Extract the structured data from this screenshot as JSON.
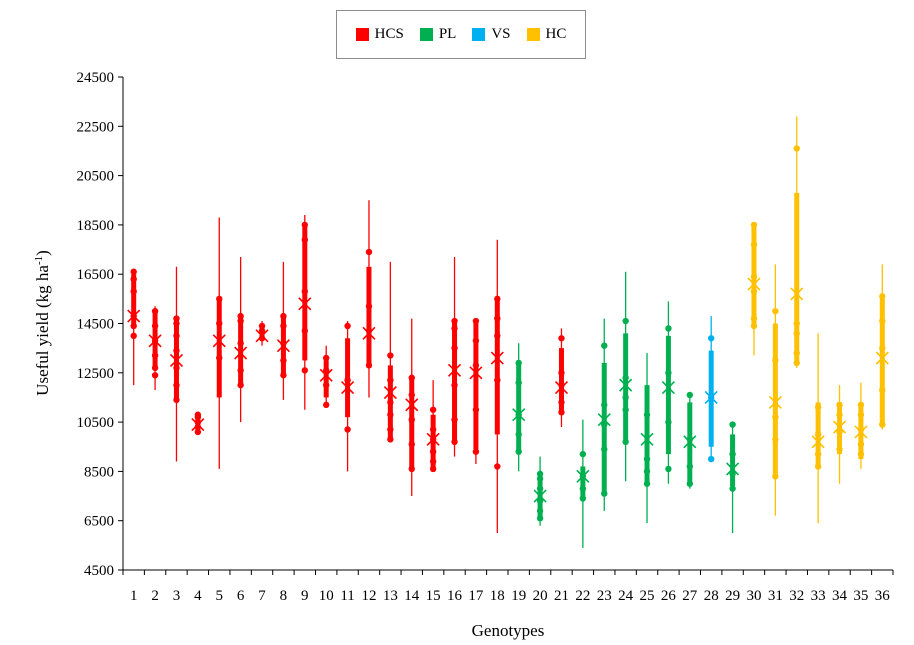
{
  "chart_data": {
    "type": "boxplot",
    "xlabel": "Genotypes",
    "ylabel": "Useful yield (kg ha",
    "ylabel_sup": "-1",
    "ylabel_close": ")",
    "ylim": [
      4500,
      24500
    ],
    "yticks": [
      4500,
      6500,
      8500,
      10500,
      12500,
      14500,
      16500,
      18500,
      20500,
      22500,
      24500
    ],
    "legend_position": "top-center",
    "groups": [
      {
        "name": "HCS",
        "color": "#ff0000"
      },
      {
        "name": "PL",
        "color": "#00b050"
      },
      {
        "name": "VS",
        "color": "#00b0f0"
      },
      {
        "name": "HC",
        "color": "#ffc000"
      }
    ],
    "genotypes": [
      {
        "label": "1",
        "group": "HCS",
        "min": 12000,
        "q1": 14300,
        "q3": 16500,
        "max": 16600,
        "mean": 14800,
        "points": [
          14000,
          14400,
          14800,
          15800,
          16300,
          16600
        ]
      },
      {
        "label": "2",
        "group": "HCS",
        "min": 11800,
        "q1": 12700,
        "q3": 15000,
        "max": 15200,
        "mean": 13800,
        "points": [
          12400,
          12700,
          13200,
          13800,
          14400,
          15000
        ]
      },
      {
        "label": "3",
        "group": "HCS",
        "min": 8900,
        "q1": 11400,
        "q3": 14700,
        "max": 16800,
        "mean": 13000,
        "points": [
          11400,
          12000,
          12700,
          13400,
          14000,
          14500,
          14700
        ]
      },
      {
        "label": "4",
        "group": "HCS",
        "min": 10000,
        "q1": 10100,
        "q3": 10800,
        "max": 10900,
        "mean": 10400,
        "points": [
          10100,
          10300,
          10500,
          10700,
          10800
        ]
      },
      {
        "label": "5",
        "group": "HCS",
        "min": 8600,
        "q1": 11500,
        "q3": 15500,
        "max": 18800,
        "mean": 13800,
        "points": [
          13100,
          14500,
          15500
        ]
      },
      {
        "label": "6",
        "group": "HCS",
        "min": 10500,
        "q1": 12000,
        "q3": 14800,
        "max": 17200,
        "mean": 13300,
        "points": [
          12000,
          12600,
          13700,
          14600,
          14800
        ]
      },
      {
        "label": "7",
        "group": "HCS",
        "min": 13600,
        "q1": 13900,
        "q3": 14400,
        "max": 14600,
        "mean": 14000,
        "points": [
          13900,
          14200,
          14400
        ]
      },
      {
        "label": "8",
        "group": "HCS",
        "min": 11400,
        "q1": 12400,
        "q3": 14800,
        "max": 17000,
        "mean": 13600,
        "points": [
          12400,
          13000,
          13700,
          14400,
          14800
        ]
      },
      {
        "label": "9",
        "group": "HCS",
        "min": 11000,
        "q1": 13000,
        "q3": 18500,
        "max": 18900,
        "mean": 15300,
        "points": [
          12600,
          14200,
          15800,
          17900,
          18500
        ]
      },
      {
        "label": "10",
        "group": "HCS",
        "min": 11100,
        "q1": 11500,
        "q3": 13000,
        "max": 13600,
        "mean": 12400,
        "points": [
          11200,
          12000,
          12600,
          13100
        ]
      },
      {
        "label": "11",
        "group": "HCS",
        "min": 8500,
        "q1": 10700,
        "q3": 13900,
        "max": 14600,
        "mean": 11900,
        "points": [
          10200,
          12200,
          14400
        ]
      },
      {
        "label": "12",
        "group": "HCS",
        "min": 11500,
        "q1": 12800,
        "q3": 16800,
        "max": 19500,
        "mean": 14100,
        "points": [
          12800,
          14200,
          15200,
          17400
        ]
      },
      {
        "label": "13",
        "group": "HCS",
        "min": 9700,
        "q1": 9800,
        "q3": 12800,
        "max": 17000,
        "mean": 11700,
        "points": [
          9800,
          10200,
          10800,
          11300,
          12200,
          13200
        ]
      },
      {
        "label": "14",
        "group": "HCS",
        "min": 7500,
        "q1": 8600,
        "q3": 12300,
        "max": 14700,
        "mean": 11200,
        "points": [
          8600,
          9600,
          10600,
          11600,
          12300
        ]
      },
      {
        "label": "15",
        "group": "HCS",
        "min": 8500,
        "q1": 8600,
        "q3": 10800,
        "max": 12200,
        "mean": 9800,
        "points": [
          8600,
          8900,
          9300,
          9800,
          10200,
          11000
        ]
      },
      {
        "label": "16",
        "group": "HCS",
        "min": 9100,
        "q1": 9700,
        "q3": 14600,
        "max": 17200,
        "mean": 12600,
        "points": [
          9700,
          10600,
          12000,
          13500,
          14300,
          14600
        ]
      },
      {
        "label": "17",
        "group": "HCS",
        "min": 8800,
        "q1": 9400,
        "q3": 14600,
        "max": 14700,
        "mean": 12500,
        "points": [
          9300,
          11000,
          12800,
          13800,
          14600
        ]
      },
      {
        "label": "18",
        "group": "HCS",
        "min": 6000,
        "q1": 10000,
        "q3": 15500,
        "max": 17900,
        "mean": 13100,
        "points": [
          8700,
          12200,
          14000,
          14700,
          15500
        ]
      },
      {
        "label": "19",
        "group": "PL",
        "min": 8500,
        "q1": 9300,
        "q3": 12900,
        "max": 13700,
        "mean": 10800,
        "points": [
          9300,
          10000,
          10800,
          12100,
          12900
        ]
      },
      {
        "label": "20",
        "group": "PL",
        "min": 6300,
        "q1": 6500,
        "q3": 8400,
        "max": 9100,
        "mean": 7500,
        "points": [
          6600,
          6900,
          7300,
          7800,
          8200,
          8400
        ]
      },
      {
        "label": "21",
        "group": "HCS",
        "min": 10300,
        "q1": 10800,
        "q3": 13500,
        "max": 14300,
        "mean": 11900,
        "points": [
          10900,
          11300,
          12000,
          12500,
          13900
        ]
      },
      {
        "label": "22",
        "group": "PL",
        "min": 5400,
        "q1": 7400,
        "q3": 8700,
        "max": 10600,
        "mean": 8300,
        "points": [
          7400,
          7800,
          8300,
          9200
        ]
      },
      {
        "label": "23",
        "group": "PL",
        "min": 6900,
        "q1": 7600,
        "q3": 12900,
        "max": 14700,
        "mean": 10600,
        "points": [
          7600,
          9400,
          10400,
          11200,
          13600
        ]
      },
      {
        "label": "24",
        "group": "PL",
        "min": 8100,
        "q1": 9700,
        "q3": 14100,
        "max": 16600,
        "mean": 12000,
        "points": [
          9700,
          11000,
          11500,
          12300,
          14600
        ]
      },
      {
        "label": "25",
        "group": "PL",
        "min": 6400,
        "q1": 8000,
        "q3": 12000,
        "max": 13300,
        "mean": 9800,
        "points": [
          8000,
          8500,
          9000,
          10800
        ]
      },
      {
        "label": "26",
        "group": "PL",
        "min": 8000,
        "q1": 9200,
        "q3": 14000,
        "max": 15400,
        "mean": 11900,
        "points": [
          8600,
          10500,
          12500,
          14300
        ]
      },
      {
        "label": "27",
        "group": "PL",
        "min": 7800,
        "q1": 8000,
        "q3": 11300,
        "max": 11700,
        "mean": 9700,
        "points": [
          8000,
          8700,
          9800,
          11600
        ]
      },
      {
        "label": "28",
        "group": "VS",
        "min": 9000,
        "q1": 9500,
        "q3": 13400,
        "max": 14800,
        "mean": 11500,
        "points": [
          9000,
          11500,
          13900
        ]
      },
      {
        "label": "29",
        "group": "PL",
        "min": 6000,
        "q1": 7900,
        "q3": 10000,
        "max": 10500,
        "mean": 8600,
        "points": [
          7800,
          8400,
          9200,
          10400
        ]
      },
      {
        "label": "30",
        "group": "HC",
        "min": 13200,
        "q1": 14400,
        "q3": 18500,
        "max": 18600,
        "mean": 16100,
        "points": [
          14400,
          14700,
          15800,
          16400,
          17700,
          18500
        ]
      },
      {
        "label": "31",
        "group": "HC",
        "min": 6700,
        "q1": 8300,
        "q3": 14500,
        "max": 16900,
        "mean": 11300,
        "points": [
          8300,
          9800,
          10700,
          13000,
          15000
        ]
      },
      {
        "label": "32",
        "group": "HC",
        "min": 12700,
        "q1": 12900,
        "q3": 19800,
        "max": 22900,
        "mean": 15700,
        "points": [
          12900,
          13300,
          14100,
          14500,
          21600
        ]
      },
      {
        "label": "33",
        "group": "HC",
        "min": 6400,
        "q1": 8600,
        "q3": 11300,
        "max": 14100,
        "mean": 9700,
        "points": [
          8700,
          9200,
          10000,
          11100
        ]
      },
      {
        "label": "34",
        "group": "HC",
        "min": 8000,
        "q1": 9200,
        "q3": 11300,
        "max": 12000,
        "mean": 10300,
        "points": [
          9400,
          10100,
          10800,
          11200
        ]
      },
      {
        "label": "35",
        "group": "HC",
        "min": 8600,
        "q1": 9000,
        "q3": 11200,
        "max": 12100,
        "mean": 10100,
        "points": [
          9200,
          9600,
          10200,
          10800,
          11200
        ]
      },
      {
        "label": "36",
        "group": "HC",
        "min": 10200,
        "q1": 10400,
        "q3": 15500,
        "max": 16900,
        "mean": 13100,
        "points": [
          10400,
          11800,
          13500,
          14600,
          15600
        ]
      }
    ]
  }
}
